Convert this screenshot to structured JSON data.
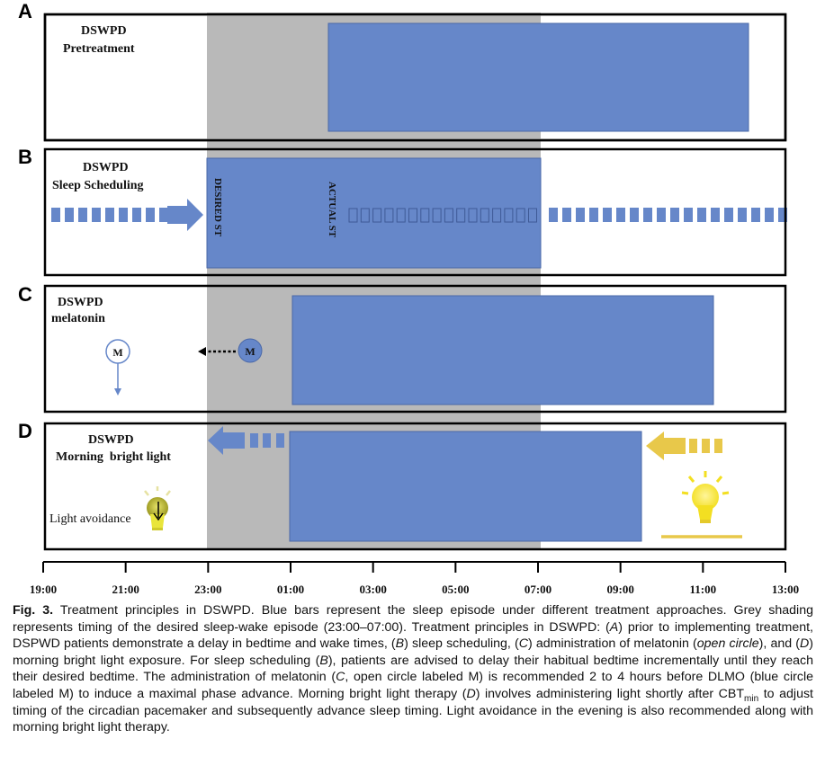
{
  "colors": {
    "bar": "#6687c9",
    "bar_stroke": "#4a68a8",
    "shade": "#b9b9b9",
    "bulb": "#f5e531",
    "arrow_yellow": "#e8c84a"
  },
  "panels": {
    "A": {
      "letter": "A",
      "line1": "DSWPD",
      "line2": "Pretreatment",
      "bar_start": "01:55",
      "bar_end": "12:05"
    },
    "B": {
      "letter": "B",
      "line1": "DSWPD",
      "line2": "Sleep Scheduling",
      "bar_start": "23:00",
      "bar_end": "07:00",
      "label_desired": "DESIRED ST",
      "label_actual": "ACTUAL ST"
    },
    "C": {
      "letter": "C",
      "line1": "DSWPD",
      "line2": "melatonin",
      "bar_start": "01:05",
      "bar_end": "11:10",
      "open_circle_label": "M",
      "blue_circle_label": "M"
    },
    "D": {
      "letter": "D",
      "line1": "DSWPD",
      "line2": "Morning  bright light",
      "bar_start": "01:00",
      "bar_end": "09:25",
      "light_avoidance": "Light avoidance"
    }
  },
  "axis": {
    "ticks": [
      "19:00",
      "21:00",
      "23:00",
      "01:00",
      "03:00",
      "05:00",
      "07:00",
      "09:00",
      "11:00",
      "13:00"
    ]
  },
  "shade_range": [
    "23:00",
    "07:00"
  ],
  "caption": {
    "fig_label": "Fig. 3.",
    "s1": " Treatment principles in DSWPD. Blue bars represent the sleep episode under different treatment approaches. Grey shading represents timing of the desired sleep-wake episode (23:00–07:00). Treatment principles in DSWPD: (",
    "A": "A",
    "s2": ") prior to implementing treatment, DSPWD patients demonstrate a delay in bedtime and wake times, (",
    "B": "B",
    "s3": ") sleep scheduling, (",
    "C": "C",
    "s4": ") administration of melatonin (",
    "open_circle": "open circle",
    "s5": "), and (",
    "D": "D",
    "s6": ") morning bright light exposure. For sleep scheduling (",
    "B2": "B",
    "s7": "), patients are advised to delay their habitual bedtime incrementally until they reach their desired bedtime. The administration of melatonin (",
    "C2": "C",
    "s8": ", open circle labeled M) is recommended 2 to 4 hours before DLMO (blue circle labeled M) to induce a maximal phase advance. Morning bright light therapy (",
    "D2": "D",
    "s9": ") involves administering light shortly after CBT",
    "min": "min",
    "s10": " to adjust timing of the circadian pacemaker and subsequently advance sleep timing. Light avoidance in the evening is also recommended along with morning bright light therapy."
  }
}
